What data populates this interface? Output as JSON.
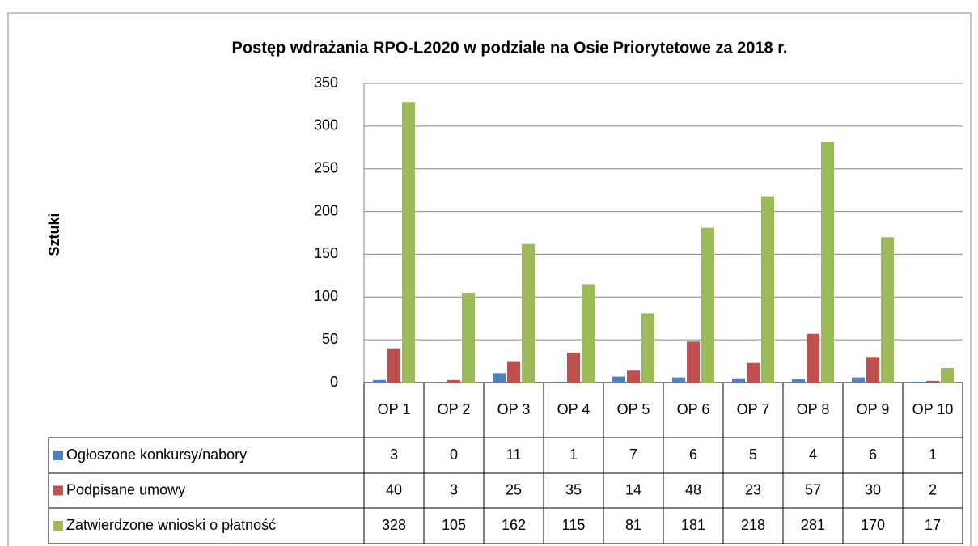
{
  "chart_data": {
    "type": "bar",
    "title": "Postęp wdrażania  RPO-L2020 w podziale na Osie Priorytetowe za 2018 r.",
    "y_label": "Sztuki",
    "categories": [
      "OP 1",
      "OP 2",
      "OP 3",
      "OP 4",
      "OP 5",
      "OP 6",
      "OP 7",
      "OP 8",
      "OP 9",
      "OP 10"
    ],
    "series": [
      {
        "name": "Ogłoszone konkursy/nabory",
        "color": "#4f81bd",
        "values": [
          3,
          0,
          11,
          1,
          7,
          6,
          5,
          4,
          6,
          1
        ]
      },
      {
        "name": "Podpisane umowy",
        "color": "#c0504d",
        "values": [
          40,
          3,
          25,
          35,
          14,
          48,
          23,
          57,
          30,
          2
        ]
      },
      {
        "name": "Zatwierdzone wnioski o płatność",
        "color": "#9bbb59",
        "values": [
          328,
          105,
          162,
          115,
          81,
          181,
          218,
          281,
          170,
          17
        ]
      }
    ],
    "ylim": [
      0,
      350
    ],
    "yticks": [
      0,
      50,
      100,
      150,
      200,
      250,
      300,
      350
    ],
    "grid": true,
    "data_table": true
  }
}
